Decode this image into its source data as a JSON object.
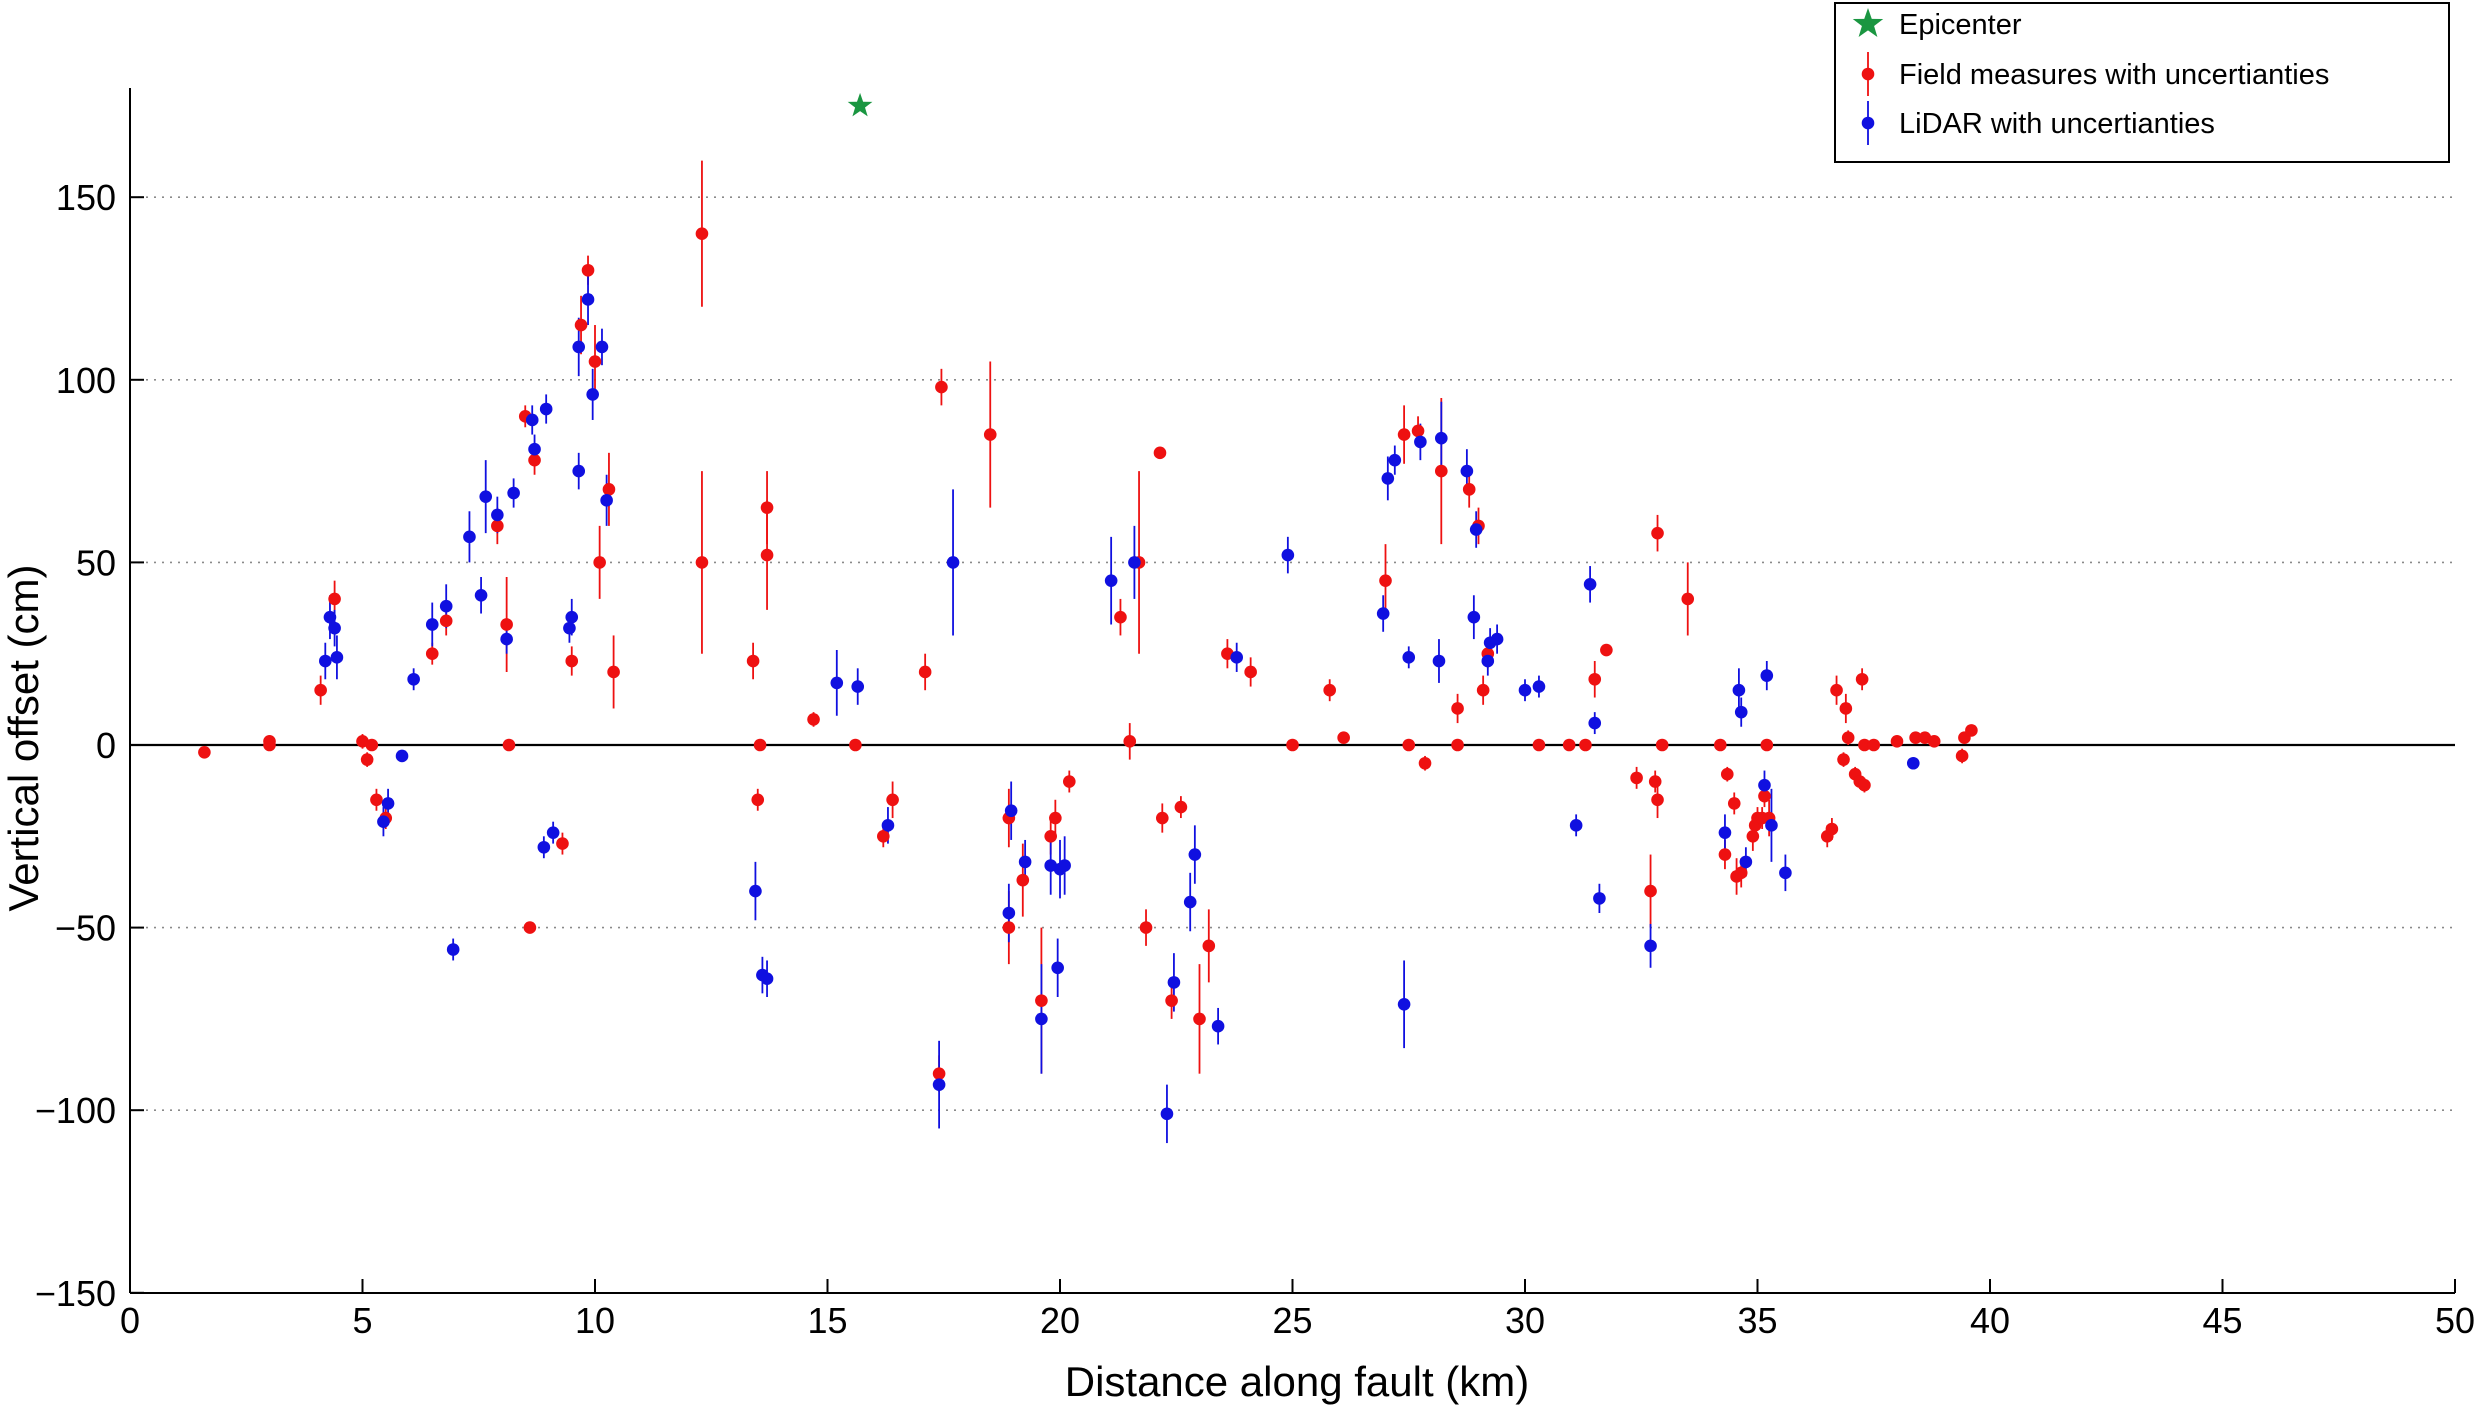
{
  "chart_data": {
    "type": "scatter",
    "xlabel": "Distance along fault (km)",
    "ylabel": "Vertical offset (cm)",
    "xlim": [
      0,
      50
    ],
    "ylim": [
      -150,
      180
    ],
    "xticks": [
      0,
      5,
      10,
      15,
      20,
      25,
      30,
      35,
      40,
      45,
      50
    ],
    "yticks": [
      -150,
      -100,
      -50,
      0,
      50,
      100,
      150
    ],
    "grid": "horizontal dotted lines at y ticks",
    "zero_line": true,
    "legend_position": "top-right",
    "legend": [
      {
        "label": "Epicenter",
        "marker": "star",
        "color": "#1a9641"
      },
      {
        "label": "Field measures with uncertianties",
        "marker": "dot-errorbar",
        "color": "#ee1111"
      },
      {
        "label": "LiDAR with uncertianties",
        "marker": "dot-errorbar",
        "color": "#1010e0"
      }
    ],
    "series": [
      {
        "name": "Epicenter",
        "color": "#1a9641",
        "points": [
          {
            "x": 15.7,
            "y": 175
          }
        ]
      },
      {
        "name": "Field measures with uncertianties",
        "color": "#ee1111",
        "points": [
          {
            "x": 1.6,
            "y": -2,
            "e": 0
          },
          {
            "x": 3.0,
            "y": 1,
            "e": 0
          },
          {
            "x": 3.0,
            "y": 0,
            "e": 0
          },
          {
            "x": 4.1,
            "y": 15,
            "e": 4
          },
          {
            "x": 4.4,
            "y": 40,
            "e": 5
          },
          {
            "x": 5.0,
            "y": 1,
            "e": 2
          },
          {
            "x": 5.1,
            "y": -4,
            "e": 2
          },
          {
            "x": 5.2,
            "y": 0,
            "e": 0
          },
          {
            "x": 5.3,
            "y": -15,
            "e": 3
          },
          {
            "x": 5.5,
            "y": -20,
            "e": 3
          },
          {
            "x": 6.5,
            "y": 25,
            "e": 3
          },
          {
            "x": 6.8,
            "y": 34,
            "e": 4
          },
          {
            "x": 7.9,
            "y": 60,
            "e": 5
          },
          {
            "x": 8.1,
            "y": 33,
            "e": 13
          },
          {
            "x": 8.15,
            "y": 0,
            "e": 0
          },
          {
            "x": 8.5,
            "y": 90,
            "e": 3
          },
          {
            "x": 8.6,
            "y": -50,
            "e": 0
          },
          {
            "x": 8.7,
            "y": 78,
            "e": 4
          },
          {
            "x": 9.3,
            "y": -27,
            "e": 3
          },
          {
            "x": 9.5,
            "y": 23,
            "e": 4
          },
          {
            "x": 9.7,
            "y": 115,
            "e": 8
          },
          {
            "x": 9.85,
            "y": 130,
            "e": 4
          },
          {
            "x": 10.0,
            "y": 105,
            "e": 10
          },
          {
            "x": 10.1,
            "y": 50,
            "e": 10
          },
          {
            "x": 10.3,
            "y": 70,
            "e": 10
          },
          {
            "x": 10.4,
            "y": 20,
            "e": 10
          },
          {
            "x": 12.3,
            "y": 140,
            "e": 20
          },
          {
            "x": 12.3,
            "y": 50,
            "e": 25
          },
          {
            "x": 13.4,
            "y": 23,
            "e": 5
          },
          {
            "x": 13.55,
            "y": 0,
            "e": 0
          },
          {
            "x": 13.5,
            "y": -15,
            "e": 3
          },
          {
            "x": 13.7,
            "y": 65,
            "e": 10
          },
          {
            "x": 13.7,
            "y": 52,
            "e": 15
          },
          {
            "x": 14.7,
            "y": 7,
            "e": 2
          },
          {
            "x": 15.6,
            "y": 0,
            "e": 0
          },
          {
            "x": 16.2,
            "y": -25,
            "e": 3
          },
          {
            "x": 16.4,
            "y": -15,
            "e": 5
          },
          {
            "x": 17.1,
            "y": 20,
            "e": 5
          },
          {
            "x": 17.45,
            "y": 98,
            "e": 5
          },
          {
            "x": 17.4,
            "y": -90,
            "e": 5
          },
          {
            "x": 18.5,
            "y": 85,
            "e": 20
          },
          {
            "x": 18.9,
            "y": -50,
            "e": 10
          },
          {
            "x": 18.9,
            "y": -20,
            "e": 8
          },
          {
            "x": 19.2,
            "y": -37,
            "e": 10
          },
          {
            "x": 19.6,
            "y": -70,
            "e": 20
          },
          {
            "x": 19.8,
            "y": -25,
            "e": 5
          },
          {
            "x": 19.9,
            "y": -20,
            "e": 5
          },
          {
            "x": 20.2,
            "y": -10,
            "e": 3
          },
          {
            "x": 21.3,
            "y": 35,
            "e": 5
          },
          {
            "x": 21.5,
            "y": 1,
            "e": 5
          },
          {
            "x": 21.7,
            "y": 50,
            "e": 25
          },
          {
            "x": 21.85,
            "y": -50,
            "e": 5
          },
          {
            "x": 22.15,
            "y": 80,
            "e": 0
          },
          {
            "x": 22.2,
            "y": -20,
            "e": 4
          },
          {
            "x": 22.4,
            "y": -70,
            "e": 5
          },
          {
            "x": 22.6,
            "y": -17,
            "e": 3
          },
          {
            "x": 23.0,
            "y": -75,
            "e": 15
          },
          {
            "x": 23.2,
            "y": -55,
            "e": 10
          },
          {
            "x": 23.6,
            "y": 25,
            "e": 4
          },
          {
            "x": 24.1,
            "y": 20,
            "e": 4
          },
          {
            "x": 25.0,
            "y": 0,
            "e": 0
          },
          {
            "x": 25.8,
            "y": 15,
            "e": 3
          },
          {
            "x": 26.1,
            "y": 2,
            "e": 0
          },
          {
            "x": 27.0,
            "y": 45,
            "e": 10
          },
          {
            "x": 27.4,
            "y": 85,
            "e": 8
          },
          {
            "x": 27.5,
            "y": 0,
            "e": 0
          },
          {
            "x": 27.7,
            "y": 86,
            "e": 4
          },
          {
            "x": 27.85,
            "y": -5,
            "e": 2
          },
          {
            "x": 28.2,
            "y": 75,
            "e": 20
          },
          {
            "x": 28.55,
            "y": 0,
            "e": 0
          },
          {
            "x": 28.55,
            "y": 10,
            "e": 4
          },
          {
            "x": 28.8,
            "y": 70,
            "e": 5
          },
          {
            "x": 29.0,
            "y": 60,
            "e": 5
          },
          {
            "x": 29.1,
            "y": 15,
            "e": 4
          },
          {
            "x": 29.2,
            "y": 25,
            "e": 4
          },
          {
            "x": 30.3,
            "y": 0,
            "e": 0
          },
          {
            "x": 30.95,
            "y": 0,
            "e": 0
          },
          {
            "x": 31.3,
            "y": 0,
            "e": 0
          },
          {
            "x": 31.5,
            "y": 18,
            "e": 5
          },
          {
            "x": 31.75,
            "y": 26,
            "e": 0
          },
          {
            "x": 32.4,
            "y": -9,
            "e": 3
          },
          {
            "x": 32.7,
            "y": -40,
            "e": 10
          },
          {
            "x": 32.8,
            "y": -10,
            "e": 3
          },
          {
            "x": 32.85,
            "y": -15,
            "e": 5
          },
          {
            "x": 32.85,
            "y": 58,
            "e": 5
          },
          {
            "x": 32.95,
            "y": 0,
            "e": 0
          },
          {
            "x": 33.5,
            "y": 40,
            "e": 10
          },
          {
            "x": 34.2,
            "y": 0,
            "e": 0
          },
          {
            "x": 34.3,
            "y": -30,
            "e": 4
          },
          {
            "x": 34.35,
            "y": -8,
            "e": 2
          },
          {
            "x": 34.5,
            "y": -16,
            "e": 3
          },
          {
            "x": 34.55,
            "y": -36,
            "e": 5
          },
          {
            "x": 34.65,
            "y": -35,
            "e": 4
          },
          {
            "x": 34.9,
            "y": -25,
            "e": 4
          },
          {
            "x": 34.95,
            "y": -22,
            "e": 3
          },
          {
            "x": 35.0,
            "y": -20,
            "e": 3
          },
          {
            "x": 35.1,
            "y": -20,
            "e": 3
          },
          {
            "x": 35.15,
            "y": -14,
            "e": 3
          },
          {
            "x": 35.2,
            "y": 0,
            "e": 0
          },
          {
            "x": 35.25,
            "y": -20,
            "e": 5
          },
          {
            "x": 36.5,
            "y": -25,
            "e": 3
          },
          {
            "x": 36.6,
            "y": -23,
            "e": 3
          },
          {
            "x": 36.7,
            "y": 15,
            "e": 4
          },
          {
            "x": 36.85,
            "y": -4,
            "e": 2
          },
          {
            "x": 36.9,
            "y": 10,
            "e": 4
          },
          {
            "x": 36.95,
            "y": 2,
            "e": 2
          },
          {
            "x": 37.1,
            "y": -8,
            "e": 2
          },
          {
            "x": 37.2,
            "y": -10,
            "e": 2
          },
          {
            "x": 37.25,
            "y": 18,
            "e": 3
          },
          {
            "x": 37.3,
            "y": -11,
            "e": 2
          },
          {
            "x": 37.3,
            "y": 0,
            "e": 0
          },
          {
            "x": 37.5,
            "y": 0,
            "e": 0
          },
          {
            "x": 38.0,
            "y": 1,
            "e": 0
          },
          {
            "x": 38.4,
            "y": 2,
            "e": 0
          },
          {
            "x": 38.6,
            "y": 2,
            "e": 0
          },
          {
            "x": 38.8,
            "y": 1,
            "e": 0
          },
          {
            "x": 39.4,
            "y": -3,
            "e": 2
          },
          {
            "x": 39.45,
            "y": 2,
            "e": 0
          },
          {
            "x": 39.6,
            "y": 4,
            "e": 0
          }
        ]
      },
      {
        "name": "LiDAR with uncertianties",
        "color": "#1010e0",
        "points": [
          {
            "x": 4.2,
            "y": 23,
            "e": 5
          },
          {
            "x": 4.3,
            "y": 35,
            "e": 6
          },
          {
            "x": 4.4,
            "y": 32,
            "e": 5
          },
          {
            "x": 4.45,
            "y": 24,
            "e": 6
          },
          {
            "x": 5.45,
            "y": -21,
            "e": 4
          },
          {
            "x": 5.55,
            "y": -16,
            "e": 4
          },
          {
            "x": 5.85,
            "y": -3,
            "e": 0
          },
          {
            "x": 6.1,
            "y": 18,
            "e": 3
          },
          {
            "x": 6.5,
            "y": 33,
            "e": 6
          },
          {
            "x": 6.8,
            "y": 38,
            "e": 6
          },
          {
            "x": 6.95,
            "y": -56,
            "e": 3
          },
          {
            "x": 7.3,
            "y": 57,
            "e": 7
          },
          {
            "x": 7.55,
            "y": 41,
            "e": 5
          },
          {
            "x": 7.65,
            "y": 68,
            "e": 10
          },
          {
            "x": 7.9,
            "y": 63,
            "e": 5
          },
          {
            "x": 8.1,
            "y": 29,
            "e": 4
          },
          {
            "x": 8.25,
            "y": 69,
            "e": 4
          },
          {
            "x": 8.65,
            "y": 89,
            "e": 4
          },
          {
            "x": 8.7,
            "y": 81,
            "e": 4
          },
          {
            "x": 8.9,
            "y": -28,
            "e": 3
          },
          {
            "x": 8.95,
            "y": 92,
            "e": 4
          },
          {
            "x": 9.1,
            "y": -24,
            "e": 3
          },
          {
            "x": 9.45,
            "y": 32,
            "e": 4
          },
          {
            "x": 9.5,
            "y": 35,
            "e": 5
          },
          {
            "x": 9.65,
            "y": 109,
            "e": 8
          },
          {
            "x": 9.65,
            "y": 75,
            "e": 5
          },
          {
            "x": 9.85,
            "y": 122,
            "e": 7
          },
          {
            "x": 9.95,
            "y": 96,
            "e": 7
          },
          {
            "x": 10.15,
            "y": 109,
            "e": 5
          },
          {
            "x": 10.25,
            "y": 67,
            "e": 7
          },
          {
            "x": 13.45,
            "y": -40,
            "e": 8
          },
          {
            "x": 13.6,
            "y": -63,
            "e": 5
          },
          {
            "x": 13.7,
            "y": -64,
            "e": 5
          },
          {
            "x": 15.2,
            "y": 17,
            "e": 9
          },
          {
            "x": 15.65,
            "y": 16,
            "e": 5
          },
          {
            "x": 16.3,
            "y": -22,
            "e": 5
          },
          {
            "x": 17.4,
            "y": -93,
            "e": 12
          },
          {
            "x": 17.7,
            "y": 50,
            "e": 20
          },
          {
            "x": 18.9,
            "y": -46,
            "e": 8
          },
          {
            "x": 18.95,
            "y": -18,
            "e": 8
          },
          {
            "x": 19.25,
            "y": -32,
            "e": 6
          },
          {
            "x": 19.6,
            "y": -75,
            "e": 15
          },
          {
            "x": 19.8,
            "y": -33,
            "e": 8
          },
          {
            "x": 19.95,
            "y": -61,
            "e": 8
          },
          {
            "x": 20.0,
            "y": -34,
            "e": 8
          },
          {
            "x": 20.1,
            "y": -33,
            "e": 8
          },
          {
            "x": 21.1,
            "y": 45,
            "e": 12
          },
          {
            "x": 21.6,
            "y": 50,
            "e": 10
          },
          {
            "x": 22.3,
            "y": -101,
            "e": 8
          },
          {
            "x": 22.45,
            "y": -65,
            "e": 8
          },
          {
            "x": 22.8,
            "y": -43,
            "e": 8
          },
          {
            "x": 22.9,
            "y": -30,
            "e": 8
          },
          {
            "x": 23.4,
            "y": -77,
            "e": 5
          },
          {
            "x": 23.8,
            "y": 24,
            "e": 4
          },
          {
            "x": 24.9,
            "y": 52,
            "e": 5
          },
          {
            "x": 26.95,
            "y": 36,
            "e": 5
          },
          {
            "x": 27.05,
            "y": 73,
            "e": 6
          },
          {
            "x": 27.2,
            "y": 78,
            "e": 4
          },
          {
            "x": 27.4,
            "y": -71,
            "e": 12
          },
          {
            "x": 27.5,
            "y": 24,
            "e": 3
          },
          {
            "x": 27.75,
            "y": 83,
            "e": 5
          },
          {
            "x": 28.15,
            "y": 23,
            "e": 6
          },
          {
            "x": 28.2,
            "y": 84,
            "e": 10
          },
          {
            "x": 28.75,
            "y": 75,
            "e": 6
          },
          {
            "x": 28.9,
            "y": 35,
            "e": 6
          },
          {
            "x": 28.95,
            "y": 59,
            "e": 5
          },
          {
            "x": 29.2,
            "y": 23,
            "e": 4
          },
          {
            "x": 29.25,
            "y": 28,
            "e": 4
          },
          {
            "x": 29.4,
            "y": 29,
            "e": 4
          },
          {
            "x": 30.0,
            "y": 15,
            "e": 3
          },
          {
            "x": 30.3,
            "y": 16,
            "e": 3
          },
          {
            "x": 31.1,
            "y": -22,
            "e": 3
          },
          {
            "x": 31.4,
            "y": 44,
            "e": 5
          },
          {
            "x": 31.5,
            "y": 6,
            "e": 3
          },
          {
            "x": 31.6,
            "y": -42,
            "e": 4
          },
          {
            "x": 32.7,
            "y": -55,
            "e": 6
          },
          {
            "x": 34.3,
            "y": -24,
            "e": 5
          },
          {
            "x": 34.6,
            "y": 15,
            "e": 6
          },
          {
            "x": 34.65,
            "y": 9,
            "e": 4
          },
          {
            "x": 34.75,
            "y": -32,
            "e": 4
          },
          {
            "x": 35.2,
            "y": 19,
            "e": 4
          },
          {
            "x": 35.15,
            "y": -11,
            "e": 4
          },
          {
            "x": 35.3,
            "y": -22,
            "e": 10
          },
          {
            "x": 35.6,
            "y": -35,
            "e": 5
          },
          {
            "x": 38.35,
            "y": -5,
            "e": 0
          }
        ]
      }
    ]
  }
}
